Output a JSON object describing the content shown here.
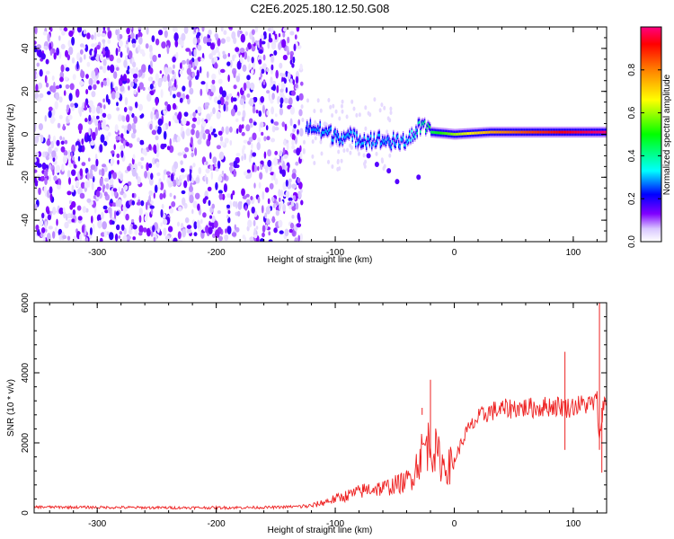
{
  "page_title": "C2E6.2025.180.12.50.G08",
  "chart_data": [
    {
      "type": "heatmap",
      "title": "C2E6.2025.180.12.50.G08",
      "xlabel": "Height of straight line (km)",
      "ylabel": "Frequency (Hz)",
      "xlim": [
        -353,
        128
      ],
      "ylim": [
        -50,
        50
      ],
      "xticks": [
        "-300",
        "-200",
        "-100",
        "0",
        "100"
      ],
      "xtick_values": [
        -300,
        -200,
        -100,
        0,
        100
      ],
      "yticks": [
        "-40",
        "-20",
        "0",
        "20",
        "40"
      ],
      "ytick_values": [
        -40,
        -20,
        0,
        20,
        40
      ],
      "grid": false,
      "noise_region": {
        "x": [
          -353,
          -128
        ],
        "description": "broadband low-amplitude noise across all frequencies"
      },
      "signal_track": [
        {
          "x": -125,
          "freq": 4,
          "amp": 0.25
        },
        {
          "x": -110,
          "freq": 1,
          "amp": 0.3
        },
        {
          "x": -95,
          "freq": -1,
          "amp": 0.3
        },
        {
          "x": -80,
          "freq": -2,
          "amp": 0.3
        },
        {
          "x": -60,
          "freq": -3,
          "amp": 0.3
        },
        {
          "x": -45,
          "freq": -4,
          "amp": 0.3
        },
        {
          "x": -35,
          "freq": 0,
          "amp": 0.35
        },
        {
          "x": -28,
          "freq": 4,
          "amp": 0.4
        },
        {
          "x": -20,
          "freq": 1,
          "amp": 0.45
        },
        {
          "x": 0,
          "freq": 0,
          "amp": 0.6
        },
        {
          "x": 30,
          "freq": 1,
          "amp": 0.75
        },
        {
          "x": 60,
          "freq": 1,
          "amp": 0.85
        },
        {
          "x": 90,
          "freq": 1,
          "amp": 0.92
        },
        {
          "x": 120,
          "freq": 1,
          "amp": 0.98
        }
      ],
      "colorbar": {
        "label": "Normalized spectral amplitude",
        "range": [
          0,
          1
        ],
        "ticks": [
          "0.0",
          "0.2",
          "0.4",
          "0.6",
          "0.8"
        ],
        "tick_values": [
          0,
          0.2,
          0.4,
          0.6,
          0.8
        ],
        "colormap": [
          "#ffffff",
          "#d9c7ff",
          "#8000ff",
          "#0000ff",
          "#00ffff",
          "#00ff00",
          "#ffff00",
          "#ff8000",
          "#ff0000",
          "#ff0080"
        ]
      }
    },
    {
      "type": "line",
      "xlabel": "Height of straight line (km)",
      "ylabel": "SNR (10 * v/v)",
      "xlim": [
        -353,
        128
      ],
      "ylim": [
        0,
        6000
      ],
      "xticks": [
        "-300",
        "-200",
        "-100",
        "0",
        "100"
      ],
      "xtick_values": [
        -300,
        -200,
        -100,
        0,
        100
      ],
      "yticks": [
        "0",
        "2000",
        "4000",
        "6000"
      ],
      "ytick_values": [
        0,
        2000,
        4000,
        6000
      ],
      "grid": false,
      "color": "#ee2222",
      "series": [
        {
          "x": [
            -353,
            -300,
            -250,
            -200,
            -150,
            -120,
            -110,
            -100,
            -90,
            -80,
            -70,
            -60,
            -50,
            -40,
            -35,
            -30,
            -25,
            -20,
            -15,
            -10,
            -5,
            0,
            10,
            20,
            30,
            40,
            50,
            60,
            70,
            80,
            90,
            95,
            100,
            110,
            115,
            120,
            122,
            125,
            128
          ],
          "y": [
            170,
            160,
            150,
            150,
            160,
            200,
            300,
            400,
            500,
            600,
            700,
            700,
            800,
            900,
            1100,
            1500,
            1900,
            2000,
            1700,
            1400,
            1300,
            1500,
            2300,
            2700,
            2900,
            2950,
            3000,
            3000,
            3000,
            3050,
            3050,
            3000,
            3050,
            3100,
            3100,
            3200,
            2000,
            3100,
            3100
          ]
        }
      ],
      "spikes": [
        {
          "x": -20,
          "y": 3800
        },
        {
          "x": -27,
          "y": 2800
        },
        {
          "x": 93,
          "y": 4600
        },
        {
          "x": 122,
          "y": 6000
        },
        {
          "x": 124,
          "y": 1150
        }
      ]
    }
  ]
}
